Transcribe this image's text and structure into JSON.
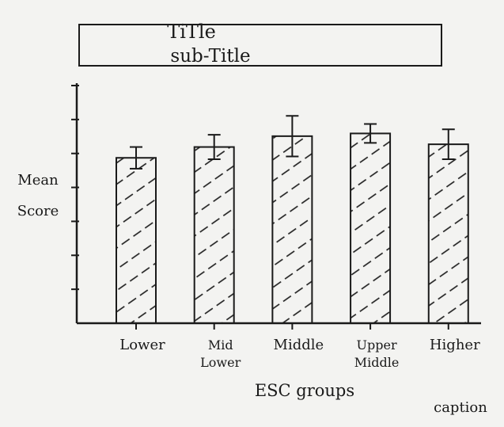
{
  "chart_data": {
    "type": "bar",
    "title": "TiTle",
    "subtitle": "sub-Title",
    "xlabel": "ESC groups",
    "ylabel": [
      "Mean",
      "Score"
    ],
    "caption": "caption",
    "categories": [
      [
        "Lower"
      ],
      [
        "Mid",
        "Lower"
      ],
      [
        "Middle"
      ],
      [
        "Upper",
        "Middle"
      ],
      [
        "Higher"
      ]
    ],
    "values": [
      6.1,
      6.5,
      6.9,
      7.0,
      6.6
    ],
    "error": [
      0.4,
      0.45,
      0.75,
      0.35,
      0.55
    ],
    "ylim": [
      0,
      9
    ],
    "yticks": 7,
    "bar_fill": "hatched",
    "grid": false,
    "ink_color": "#1a1a1a",
    "paper_color": "#f3f3f1"
  }
}
